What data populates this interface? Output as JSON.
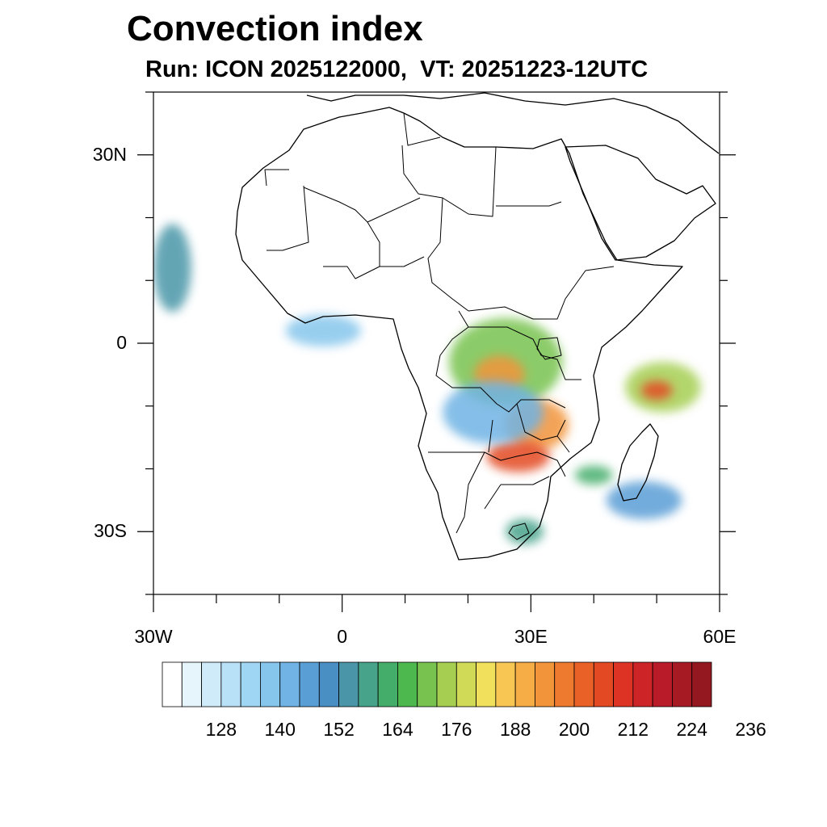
{
  "title": "Convection index",
  "subtitle": "Run: ICON 2025122000,  VT: 20251223-12UTC",
  "map": {
    "region": "Africa",
    "lon_range": [
      -30,
      60
    ],
    "lat_range": [
      -40,
      40
    ],
    "lat_labels": [
      {
        "lat": 30,
        "text": "30N"
      },
      {
        "lat": 0,
        "text": "0"
      },
      {
        "lat": -30,
        "text": "30S"
      }
    ],
    "lon_labels": [
      {
        "lon": -30,
        "text": "30W"
      },
      {
        "lon": 0,
        "text": "0"
      },
      {
        "lon": 30,
        "text": "30E"
      },
      {
        "lon": 60,
        "text": "60E"
      }
    ]
  },
  "colorbar": {
    "colors": [
      "#ffffff",
      "#e6f4fc",
      "#cfeaf8",
      "#b8e0f6",
      "#9fd6f4",
      "#86c6ec",
      "#70b3e4",
      "#5a9ed6",
      "#4a8fc4",
      "#4a96a8",
      "#47a38a",
      "#45ad6a",
      "#4cb84e",
      "#78c350",
      "#a6cf52",
      "#d0da56",
      "#f0e05c",
      "#f7c653",
      "#f6ad46",
      "#f2943a",
      "#ee7a30",
      "#ea6128",
      "#e34a24",
      "#dc3325",
      "#cd2428",
      "#b91c28",
      "#a61a24",
      "#941820"
    ],
    "labels": [
      "128",
      "140",
      "152",
      "164",
      "176",
      "188",
      "200",
      "212",
      "224",
      "236"
    ]
  },
  "convection_blobs": [
    {
      "lon": 26,
      "lat": -3,
      "rx": 9,
      "ry": 7,
      "level": 13
    },
    {
      "lon": 25,
      "lat": -5,
      "rx": 4,
      "ry": 3,
      "level": 19
    },
    {
      "lon": 31,
      "lat": -13,
      "rx": 5,
      "ry": 4,
      "level": 19
    },
    {
      "lon": 28,
      "lat": -18,
      "rx": 5,
      "ry": 2.5,
      "level": 22
    },
    {
      "lon": 51,
      "lat": -7,
      "rx": 6,
      "ry": 4,
      "level": 14
    },
    {
      "lon": 50,
      "lat": -7.5,
      "rx": 2.5,
      "ry": 1.5,
      "level": 22
    },
    {
      "lon": -27,
      "lat": 12,
      "rx": 3,
      "ry": 7,
      "level": 9
    },
    {
      "lon": 24,
      "lat": -11,
      "rx": 8,
      "ry": 5,
      "level": 6
    },
    {
      "lon": 48,
      "lat": -25,
      "rx": 6,
      "ry": 3,
      "level": 7
    },
    {
      "lon": -3,
      "lat": 2,
      "rx": 6,
      "ry": 2.5,
      "level": 5
    },
    {
      "lon": 29,
      "lat": -30,
      "rx": 3,
      "ry": 2,
      "level": 10
    },
    {
      "lon": 40,
      "lat": -21,
      "rx": 3,
      "ry": 1.5,
      "level": 11
    }
  ]
}
